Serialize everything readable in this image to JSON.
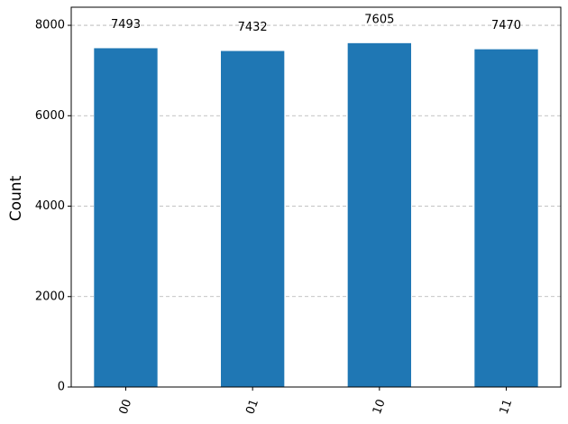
{
  "chart_data": {
    "type": "bar",
    "y_label": "Count",
    "categories": [
      "00",
      "01",
      "10",
      "11"
    ],
    "values": [
      7493,
      7432,
      7605,
      7470
    ],
    "color": "#1f77b4",
    "ylim": [
      0,
      8400
    ],
    "yticks": [
      0,
      2000,
      4000,
      6000,
      8000
    ],
    "grid": true
  }
}
